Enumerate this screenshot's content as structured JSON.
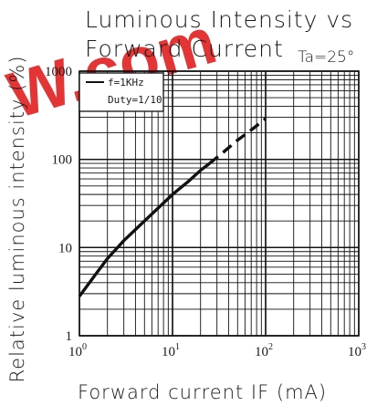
{
  "title": {
    "line1": "Luminous Intensity vs",
    "line2": "Forward Current"
  },
  "condition": "Ta=25°",
  "watermark": {
    "text": "W.com",
    "color": "#e02020"
  },
  "legend": {
    "line1": "f=1KHz",
    "line2": "Duty=1/10"
  },
  "chart_data": {
    "type": "line",
    "title": "Luminous Intensity vs Forward Current",
    "xlabel": "Forward current IF (mA)",
    "ylabel": "Relative luminous intensity (%)",
    "x_scale": "log",
    "y_scale": "log",
    "xlim": [
      1,
      1000
    ],
    "ylim": [
      1,
      1000
    ],
    "grid": true,
    "x_ticks": [
      {
        "base": "10",
        "exp": "0"
      },
      {
        "base": "10",
        "exp": "1"
      },
      {
        "base": "10",
        "exp": "2"
      },
      {
        "base": "10",
        "exp": "3"
      }
    ],
    "y_ticks": [
      "1",
      "10",
      "100",
      "1000"
    ],
    "series": [
      {
        "style": "solid",
        "color": "#111111",
        "points": [
          [
            1,
            2.8
          ],
          [
            1.5,
            5
          ],
          [
            2,
            7.5
          ],
          [
            3,
            12
          ],
          [
            5,
            20
          ],
          [
            7,
            28
          ],
          [
            10,
            40
          ],
          [
            15,
            57
          ],
          [
            20,
            75
          ],
          [
            25,
            90
          ]
        ]
      },
      {
        "style": "dashed",
        "color": "#111111",
        "points": [
          [
            25,
            90
          ],
          [
            35,
            120
          ],
          [
            50,
            165
          ],
          [
            70,
            215
          ],
          [
            100,
            290
          ]
        ]
      }
    ]
  }
}
